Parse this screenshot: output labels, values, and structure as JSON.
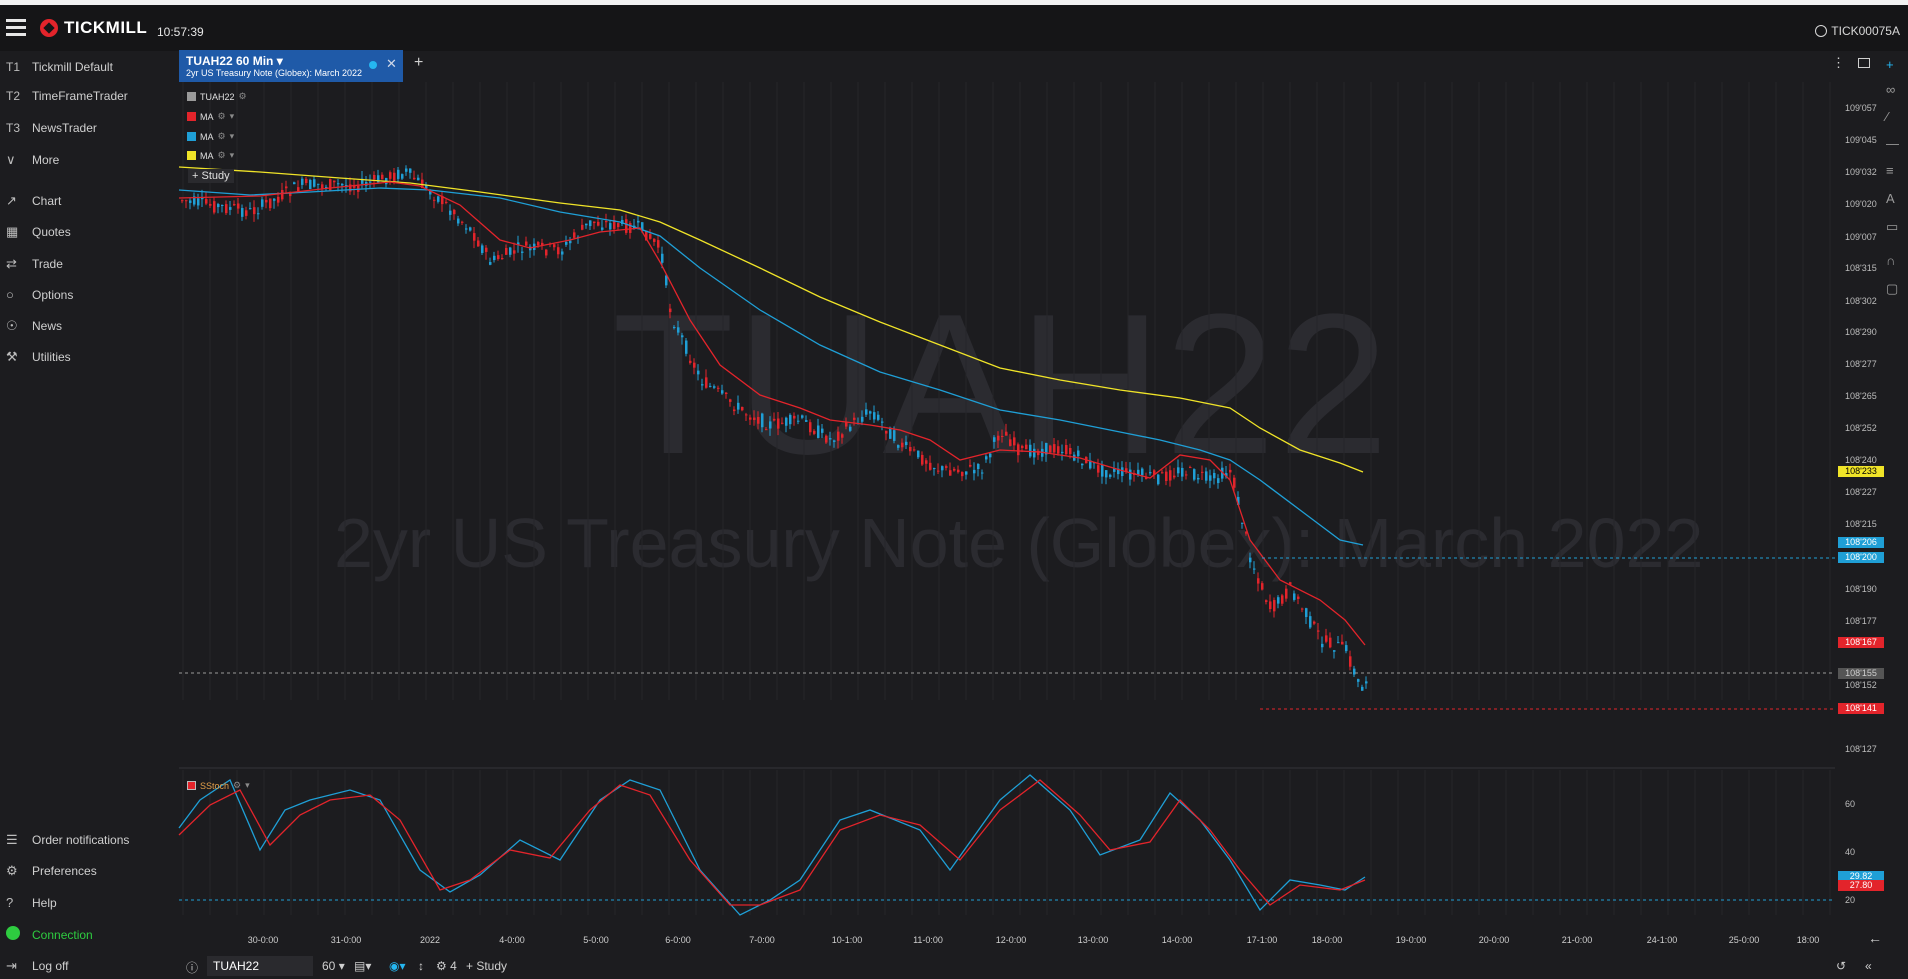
{
  "app": {
    "brand": "TICKMILL",
    "clock": "10:57:39",
    "account": "TICK00075A"
  },
  "sidebar": {
    "workspaces": [
      {
        "code": "T1",
        "label": "Tickmill Default"
      },
      {
        "code": "T2",
        "label": "TimeFrameTrader"
      },
      {
        "code": "T3",
        "label": "NewsTrader"
      }
    ],
    "more_label": "More",
    "nav": [
      {
        "icon": "chart-icon",
        "label": "Chart"
      },
      {
        "icon": "quotes-icon",
        "label": "Quotes"
      },
      {
        "icon": "trade-icon",
        "label": "Trade"
      },
      {
        "icon": "options-icon",
        "label": "Options"
      },
      {
        "icon": "news-icon",
        "label": "News"
      },
      {
        "icon": "utilities-icon",
        "label": "Utilities"
      }
    ],
    "bottom": [
      {
        "icon": "list-icon",
        "label": "Order notifications"
      },
      {
        "icon": "gears-icon",
        "label": "Preferences"
      },
      {
        "icon": "help-icon",
        "label": "Help"
      },
      {
        "icon": "connection-dot",
        "label": "Connection"
      },
      {
        "icon": "logoff-icon",
        "label": "Log off"
      }
    ]
  },
  "chart_tab": {
    "title": "TUAH22 60 Min",
    "subtitle": "2yr US Treasury Note (Globex): March 2022"
  },
  "watermark": {
    "symbol": "TUAH22",
    "description": "2yr US Treasury Note (Globex): March 2022"
  },
  "legend": [
    {
      "label": "TUAH22",
      "color": "#9a9a9a"
    },
    {
      "label": "MA",
      "color": "#e3242b"
    },
    {
      "label": "MA",
      "color": "#1f9fd6"
    },
    {
      "label": "MA",
      "color": "#f0e428"
    }
  ],
  "study_button": "Study",
  "price_axis": [
    "109'057",
    "109'045",
    "109'032",
    "109'020",
    "109'007",
    "108'315",
    "108'302",
    "108'290",
    "108'277",
    "108'265",
    "108'252",
    "108'240",
    "108'227",
    "108'215",
    "108'200",
    "108'190",
    "108'177",
    "108'152",
    "108'127"
  ],
  "price_badges": [
    {
      "label": "108'233",
      "color": "#f0e428",
      "text_color": "#000000"
    },
    {
      "label": "108'206",
      "color": "#1f9fd6",
      "text_color": "#ffffff"
    },
    {
      "label": "108'200",
      "color": "#1f9fd6",
      "text_color": "#ffffff"
    },
    {
      "label": "108'167",
      "color": "#e3242b",
      "text_color": "#ffffff"
    },
    {
      "label": "108'155",
      "color": "#555555",
      "text_color": "#cfcfcf"
    },
    {
      "label": "108'141",
      "color": "#e3242b",
      "text_color": "#ffffff"
    }
  ],
  "oscillator": {
    "label": "SStoch",
    "axis": [
      "60",
      "40",
      "20"
    ],
    "badges": [
      {
        "label": "29.82",
        "color": "#1f9fd6"
      },
      {
        "label": "27.80",
        "color": "#e3242b"
      }
    ]
  },
  "time_axis": [
    "30-0:00",
    "31-0:00",
    "2022",
    "4-0:00",
    "5-0:00",
    "6-0:00",
    "7-0:00",
    "10-1:00",
    "11-0:00",
    "12-0:00",
    "13-0:00",
    "14-0:00",
    "17-1:00",
    "18-0:00",
    "19-0:00",
    "20-0:00",
    "21-0:00",
    "24-1:00",
    "25-0:00",
    "18:00"
  ],
  "bottom_bar": {
    "symbol": "TUAH22",
    "interval": "60",
    "studies_count": "4",
    "study_label": "Study"
  },
  "colors": {
    "up": "#1f9fd6",
    "down": "#e3242b",
    "ma_fast": "#e3242b",
    "ma_mid": "#1f9fd6",
    "ma_slow": "#f0e428"
  }
}
